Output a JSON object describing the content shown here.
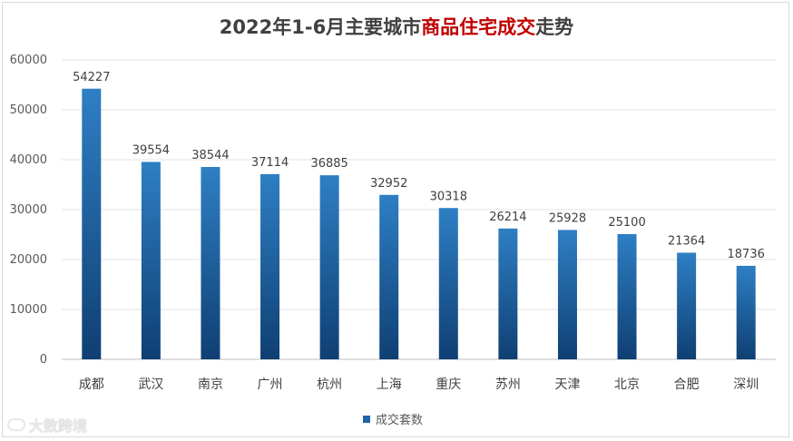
{
  "chart_data": {
    "type": "bar",
    "title_parts": [
      "2022年1-6月主要城市",
      "商品住宅成交",
      "走势"
    ],
    "categories": [
      "成都",
      "武汉",
      "南京",
      "广州",
      "杭州",
      "上海",
      "重庆",
      "苏州",
      "天津",
      "北京",
      "合肥",
      "深圳"
    ],
    "series": [
      {
        "name": "成交套数",
        "values": [
          54227,
          39554,
          38544,
          37114,
          36885,
          32952,
          30318,
          26214,
          25928,
          25100,
          21364,
          18736
        ]
      }
    ],
    "ylim": [
      0,
      60000
    ],
    "yticks": [
      0,
      10000,
      20000,
      30000,
      40000,
      50000,
      60000
    ],
    "grid": true,
    "legend_position": "bottom",
    "colors": {
      "bar_top": "#2e7fc4",
      "bar_bottom": "#0f3f73",
      "title_highlight": "#c00000"
    }
  },
  "watermark": {
    "text": "大数跨境"
  }
}
